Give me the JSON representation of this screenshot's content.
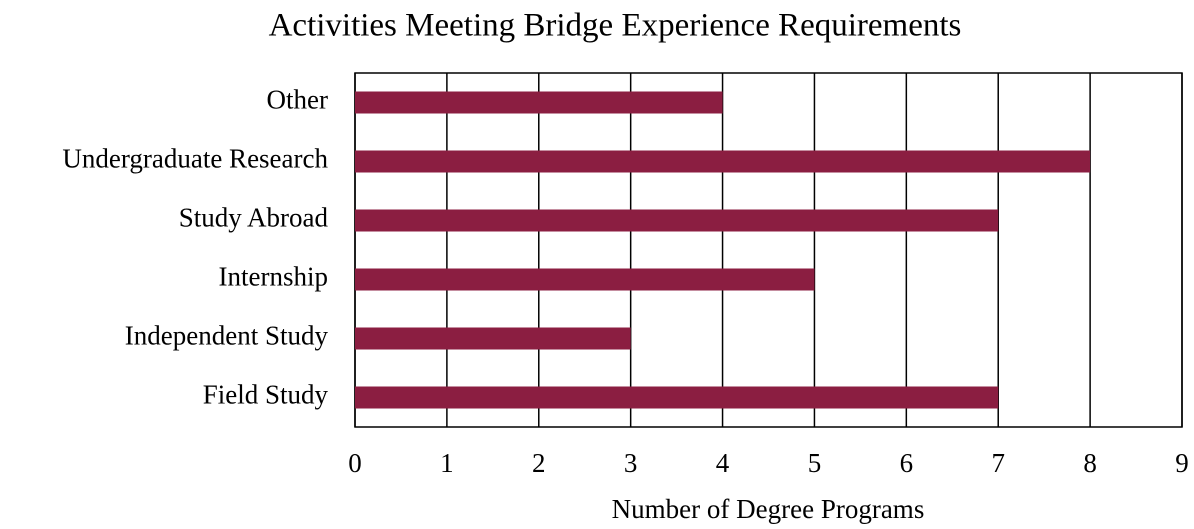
{
  "chart_data": {
    "type": "bar",
    "orientation": "horizontal",
    "title": "Activities Meeting Bridge Experience Requirements",
    "x_label": "Number of Degree Programs",
    "categories": [
      "Other",
      "Undergraduate Research",
      "Study Abroad",
      "Internship",
      "Independent Study",
      "Field Study"
    ],
    "values": [
      4,
      8,
      7,
      5,
      3,
      7
    ],
    "color": "#8b1e41",
    "xlim": [
      0,
      9
    ],
    "xticks": [
      0,
      1,
      2,
      3,
      4,
      5,
      6,
      7,
      8,
      9
    ],
    "grid": true
  }
}
